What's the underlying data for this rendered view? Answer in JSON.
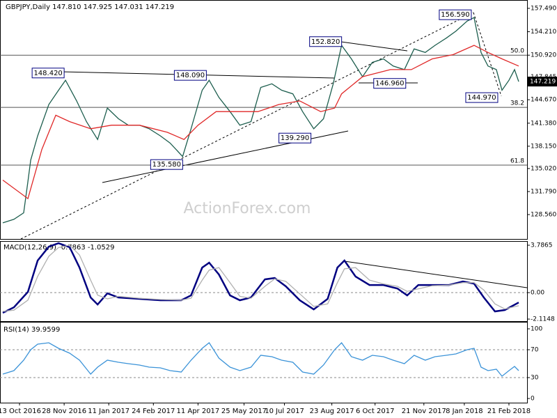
{
  "chart_data": [
    {
      "type": "line",
      "title": "GBPJPY,Daily  147.810 147.925 147.031 147.219",
      "watermark": "ActionForex.com",
      "xlim": [
        0,
        378
      ],
      "ylim": [
        125.14,
        158.66
      ],
      "yticks": [
        {
          "value": 157.49,
          "label": "157.490"
        },
        {
          "value": 154.21,
          "label": "154.210"
        },
        {
          "value": 150.92,
          "label": "150.920"
        },
        {
          "value": 147.845,
          "label": "147.845"
        },
        {
          "value": 144.67,
          "label": "144.670"
        },
        {
          "value": 141.38,
          "label": "141.380"
        },
        {
          "value": 138.15,
          "label": "138.150"
        },
        {
          "value": 135.02,
          "label": "135.020"
        },
        {
          "value": 131.79,
          "label": "131.790"
        },
        {
          "value": 128.56,
          "label": "128.560"
        }
      ],
      "xticks": [
        {
          "value": 14,
          "label": "13 Oct 2016"
        },
        {
          "value": 46,
          "label": "28 Nov 2016"
        },
        {
          "value": 78,
          "label": "11 Jan 2017"
        },
        {
          "value": 110,
          "label": "24 Feb 2017"
        },
        {
          "value": 142,
          "label": "11 Apr 2017"
        },
        {
          "value": 175,
          "label": "25 May 2017"
        },
        {
          "value": 204,
          "label": "10 Jul 2017"
        },
        {
          "value": 238,
          "label": "23 Aug 2017"
        },
        {
          "value": 269,
          "label": "6 Oct 2017"
        },
        {
          "value": 304,
          "label": "21 Nov 2017"
        },
        {
          "value": 333,
          "label": "8 Jan 2018"
        },
        {
          "value": 365,
          "label": "21 Feb 2018"
        }
      ],
      "series": [
        {
          "color": "#1d5e4e",
          "x": [
            2,
            10,
            17,
            20,
            22,
            27,
            35,
            42,
            47,
            55,
            62,
            70,
            77,
            85,
            92,
            100,
            107,
            115,
            122,
            131,
            137,
            145,
            150,
            157,
            165,
            172,
            180,
            187,
            195,
            202,
            210,
            217,
            225,
            232,
            239,
            245,
            252,
            260,
            267,
            275,
            282,
            290,
            297,
            305,
            312,
            320,
            327,
            335,
            340,
            345,
            350,
            356,
            360,
            365,
            369,
            372
          ],
          "values": [
            127.4,
            127.9,
            128.8,
            133.2,
            136.2,
            139.6,
            144.0,
            146.0,
            147.4,
            144.5,
            141.6,
            139.1,
            143.5,
            142.0,
            141.1,
            141.1,
            140.6,
            139.6,
            138.6,
            136.7,
            140.6,
            146.0,
            147.4,
            145.0,
            143.0,
            141.1,
            141.6,
            146.4,
            146.9,
            146.0,
            145.5,
            143.0,
            140.6,
            142.0,
            146.9,
            152.3,
            150.4,
            147.9,
            149.9,
            150.4,
            149.4,
            148.9,
            151.8,
            151.3,
            152.3,
            153.3,
            154.3,
            155.7,
            156.2,
            151.3,
            149.4,
            148.9,
            146.0,
            147.4,
            148.9,
            147.219
          ]
        },
        {
          "color": "#e02828",
          "x": [
            2,
            20,
            30,
            40,
            50,
            65,
            80,
            100,
            120,
            132,
            142,
            155,
            170,
            185,
            200,
            215,
            230,
            240,
            245,
            260,
            280,
            295,
            310,
            325,
            340,
            350,
            360,
            372
          ],
          "values": [
            133.4,
            130.8,
            137.7,
            142.5,
            141.6,
            140.6,
            141.1,
            141.1,
            140.1,
            139.1,
            141.1,
            143.0,
            143.0,
            143.0,
            144.0,
            144.5,
            143.0,
            143.5,
            145.5,
            147.9,
            148.9,
            148.9,
            150.4,
            151.0,
            152.3,
            151.3,
            150.4,
            149.4
          ]
        }
      ],
      "levels": [
        {
          "label": "50.0",
          "value": 150.92
        },
        {
          "label": "38.2",
          "value": 143.6
        },
        {
          "label": "61.8",
          "value": 135.5
        }
      ],
      "annotations": [
        {
          "label": "148.420",
          "value": 148.42,
          "x": 48
        },
        {
          "label": "148.090",
          "value": 148.09,
          "x": 150
        },
        {
          "label": "152.820",
          "value": 152.82,
          "x": 247
        },
        {
          "label": "156.590",
          "value": 156.59,
          "x": 340
        },
        {
          "label": "146.960",
          "value": 146.96,
          "x": 293
        },
        {
          "label": "144.970",
          "value": 144.97,
          "x": 359
        },
        {
          "label": "139.290",
          "value": 139.29,
          "x": 225
        },
        {
          "label": "135.580",
          "value": 135.58,
          "x": 133
        }
      ],
      "last": {
        "value": 147.219,
        "label": "147.219"
      }
    },
    {
      "type": "line",
      "title": "MACD(12,26,9) -0.7863 -1.0529",
      "xlim": [
        0,
        378
      ],
      "ylim": [
        -2.28,
        4.12
      ],
      "yticks": [
        3.7865,
        {
          "value": 0,
          "label": "0.00"
        },
        -2.1148
      ],
      "levels": [
        0
      ],
      "x": [
        2,
        10,
        20,
        27,
        35,
        42,
        50,
        57,
        65,
        70,
        77,
        85,
        100,
        115,
        130,
        137,
        145,
        150,
        157,
        165,
        172,
        180,
        190,
        197,
        205,
        215,
        225,
        235,
        242,
        247,
        255,
        265,
        275,
        285,
        292,
        300,
        310,
        322,
        332,
        340,
        347,
        355,
        362,
        372
      ],
      "series": [
        {
          "color": "#000080",
          "values": [
            -1.61,
            -1.17,
            0.06,
            2.56,
            3.67,
            3.95,
            3.62,
            2.0,
            -0.39,
            -0.95,
            -0.06,
            -0.39,
            -0.5,
            -0.61,
            -0.61,
            -0.22,
            2.0,
            2.39,
            1.45,
            -0.22,
            -0.61,
            -0.39,
            1.06,
            1.17,
            0.5,
            -0.61,
            -1.34,
            -0.5,
            2.0,
            2.56,
            1.28,
            0.61,
            0.61,
            0.33,
            -0.22,
            0.61,
            0.61,
            0.61,
            0.89,
            0.72,
            -0.39,
            -1.5,
            -1.39,
            -0.79
          ]
        },
        {
          "color": "#b0b0b0",
          "values": [
            -1.5,
            -1.4,
            -0.6,
            1.3,
            2.9,
            3.6,
            3.8,
            3.0,
            1.0,
            -0.2,
            -0.5,
            -0.3,
            -0.45,
            -0.55,
            -0.6,
            -0.45,
            1.0,
            1.8,
            2.0,
            0.8,
            -0.3,
            -0.45,
            0.5,
            1.1,
            0.9,
            -0.1,
            -1.1,
            -0.9,
            0.8,
            1.9,
            2.0,
            1.0,
            0.7,
            0.5,
            0.1,
            0.3,
            0.55,
            0.6,
            0.8,
            0.8,
            0.2,
            -0.9,
            -1.3,
            -1.05
          ]
        }
      ]
    },
    {
      "type": "line",
      "title": "RSI(14) 39.9599",
      "xlim": [
        0,
        378
      ],
      "ylim": [
        -6,
        110
      ],
      "yticks": [
        100,
        70,
        30,
        0
      ],
      "levels": [
        70,
        30
      ],
      "x": [
        2,
        10,
        17,
        22,
        27,
        35,
        42,
        50,
        57,
        65,
        70,
        77,
        85,
        92,
        100,
        107,
        115,
        122,
        130,
        137,
        145,
        150,
        157,
        165,
        172,
        180,
        187,
        195,
        202,
        210,
        217,
        225,
        232,
        240,
        245,
        252,
        260,
        267,
        275,
        282,
        290,
        297,
        305,
        312,
        320,
        327,
        335,
        340,
        345,
        350,
        356,
        360,
        365,
        369,
        372
      ],
      "series": [
        {
          "color": "#3b93d8",
          "values": [
            35,
            40,
            55,
            70,
            78,
            80,
            72,
            65,
            55,
            35,
            45,
            55,
            52,
            50,
            48,
            45,
            44,
            40,
            38,
            55,
            72,
            80,
            58,
            45,
            40,
            45,
            62,
            60,
            55,
            52,
            38,
            35,
            48,
            70,
            80,
            60,
            55,
            62,
            60,
            55,
            50,
            62,
            55,
            60,
            62,
            64,
            70,
            72,
            45,
            40,
            42,
            32,
            40,
            46,
            39.96
          ]
        }
      ]
    }
  ]
}
